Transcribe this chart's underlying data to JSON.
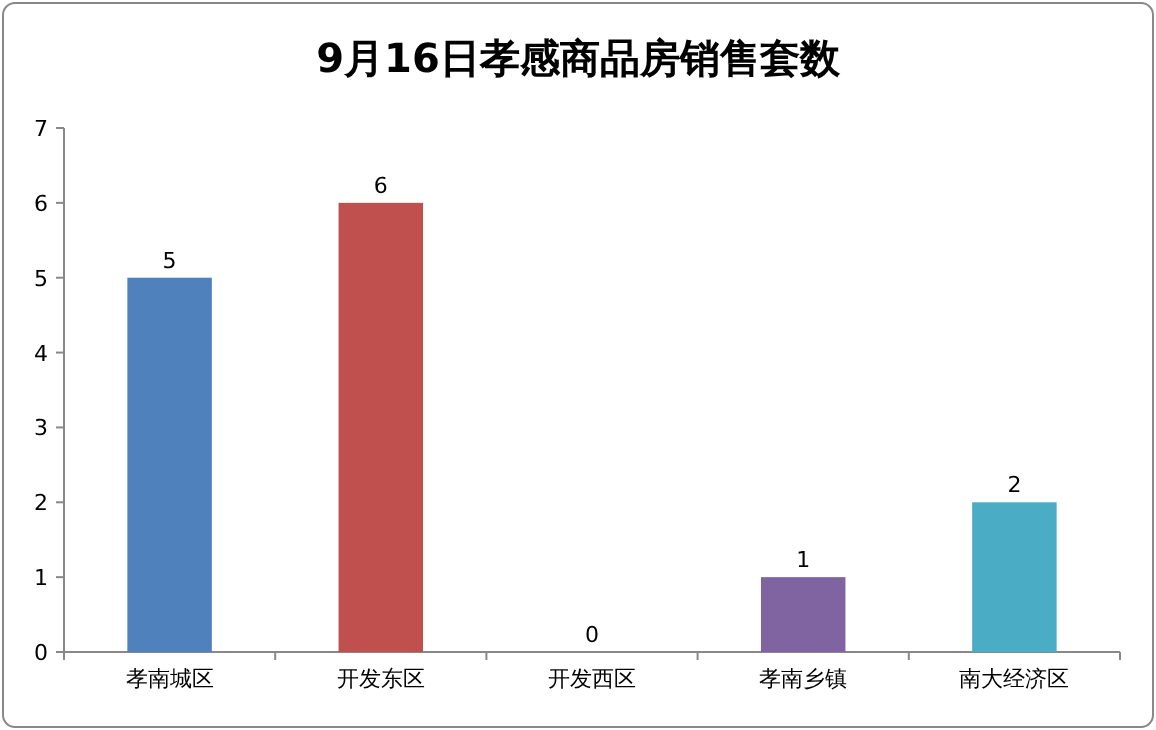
{
  "chart_data": {
    "type": "bar",
    "title": "9月16日孝感商品房销售套数",
    "categories": [
      "孝南城区",
      "开发东区",
      "开发西区",
      "孝南乡镇",
      "南大经济区"
    ],
    "values": [
      5,
      6,
      0,
      1,
      2
    ],
    "colors": [
      "#4f81bd",
      "#c0504d",
      "#9bbb59",
      "#8064a2",
      "#4bacc6"
    ],
    "ylim": [
      0,
      7
    ],
    "yticks": [
      0,
      1,
      2,
      3,
      4,
      5,
      6,
      7
    ],
    "data_labels": true
  }
}
